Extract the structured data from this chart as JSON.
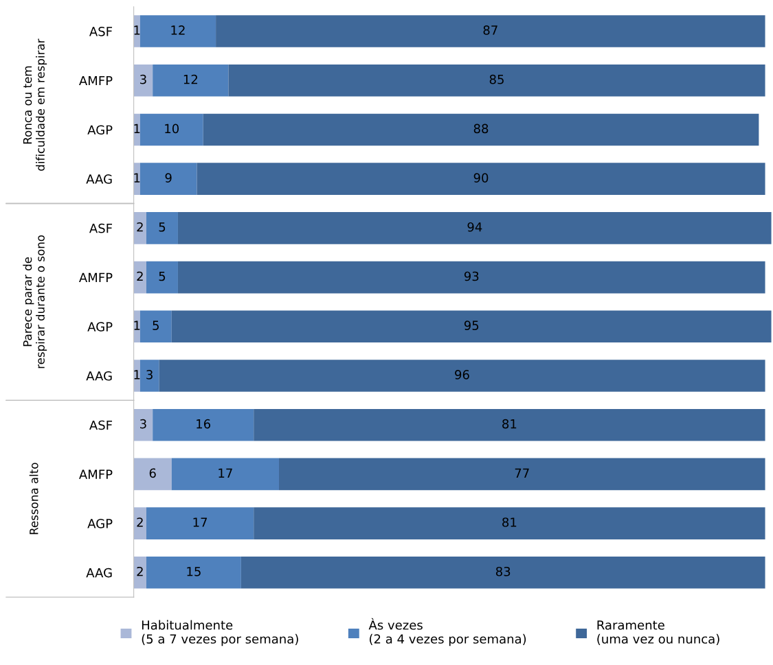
{
  "chart_data": {
    "type": "bar",
    "orientation": "horizontal",
    "stacked": true,
    "data_labels": true,
    "legend": "bottom",
    "xlim": [
      0,
      101
    ],
    "categories": [
      "ASF",
      "AMFP",
      "AGP",
      "AAG",
      "ASF",
      "AMFP",
      "AGP",
      "AAG",
      "ASF",
      "AMFP",
      "AGP",
      "AAG"
    ],
    "annotations": [
      "Ronca ou tem dificuldade em respirar",
      "Parece parar de respirar durante o sono",
      "Ressona alto"
    ],
    "series": [
      {
        "name": "Habitualmente\n(5 a 7 vezes por semana)",
        "color": "#aab8d8",
        "values": [
          1,
          3,
          1,
          1,
          2,
          2,
          1,
          1,
          3,
          6,
          2,
          2
        ]
      },
      {
        "name": "Às vezes\n(2 a 4 vezes por semana)",
        "color": "#4f81bd",
        "values": [
          12,
          12,
          10,
          9,
          5,
          5,
          5,
          3,
          16,
          17,
          17,
          15
        ]
      },
      {
        "name": "Raramente\n(uma vez ou nunca)",
        "color": "#3f6899",
        "values": [
          87,
          85,
          88,
          90,
          94,
          93,
          95,
          96,
          81,
          77,
          81,
          83
        ]
      }
    ]
  }
}
